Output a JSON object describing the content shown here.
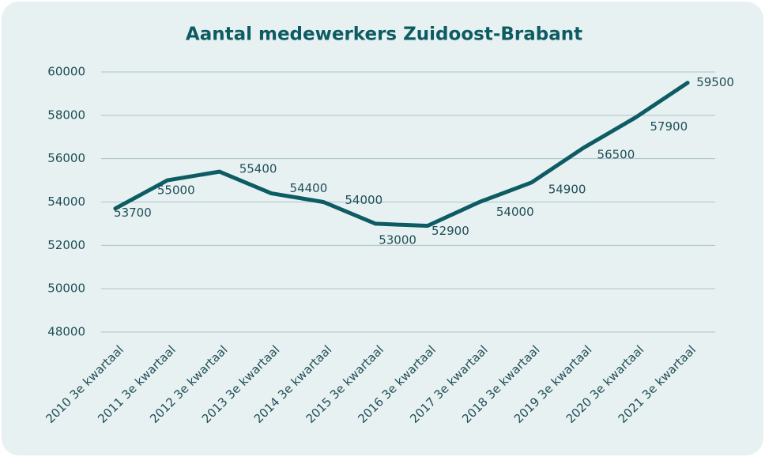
{
  "chart_data": {
    "type": "line",
    "title": "Aantal medewerkers Zuidoost-Brabant",
    "categories": [
      "2010 3e kwartaal",
      "2011 3e kwartaal",
      "2012 3e kwartaal",
      "2013 3e kwartaal",
      "2014 3e kwartaal",
      "2015 3e kwartaal",
      "2016 3e kwartaal",
      "2017 3e kwartaal",
      "2018 3e kwartaal",
      "2019 3e kwartaal",
      "2020 3e kwartaal",
      "2021 3e kwartaal"
    ],
    "series": [
      {
        "name": "Aantal medewerkers",
        "color": "#0d5c63",
        "values": [
          53700,
          55000,
          55400,
          54400,
          54000,
          53000,
          52900,
          54000,
          54900,
          56500,
          57900,
          59500
        ]
      }
    ],
    "ylim": [
      48000,
      60000
    ],
    "yticks": [
      48000,
      50000,
      52000,
      54000,
      56000,
      58000,
      60000
    ],
    "grid": true
  }
}
